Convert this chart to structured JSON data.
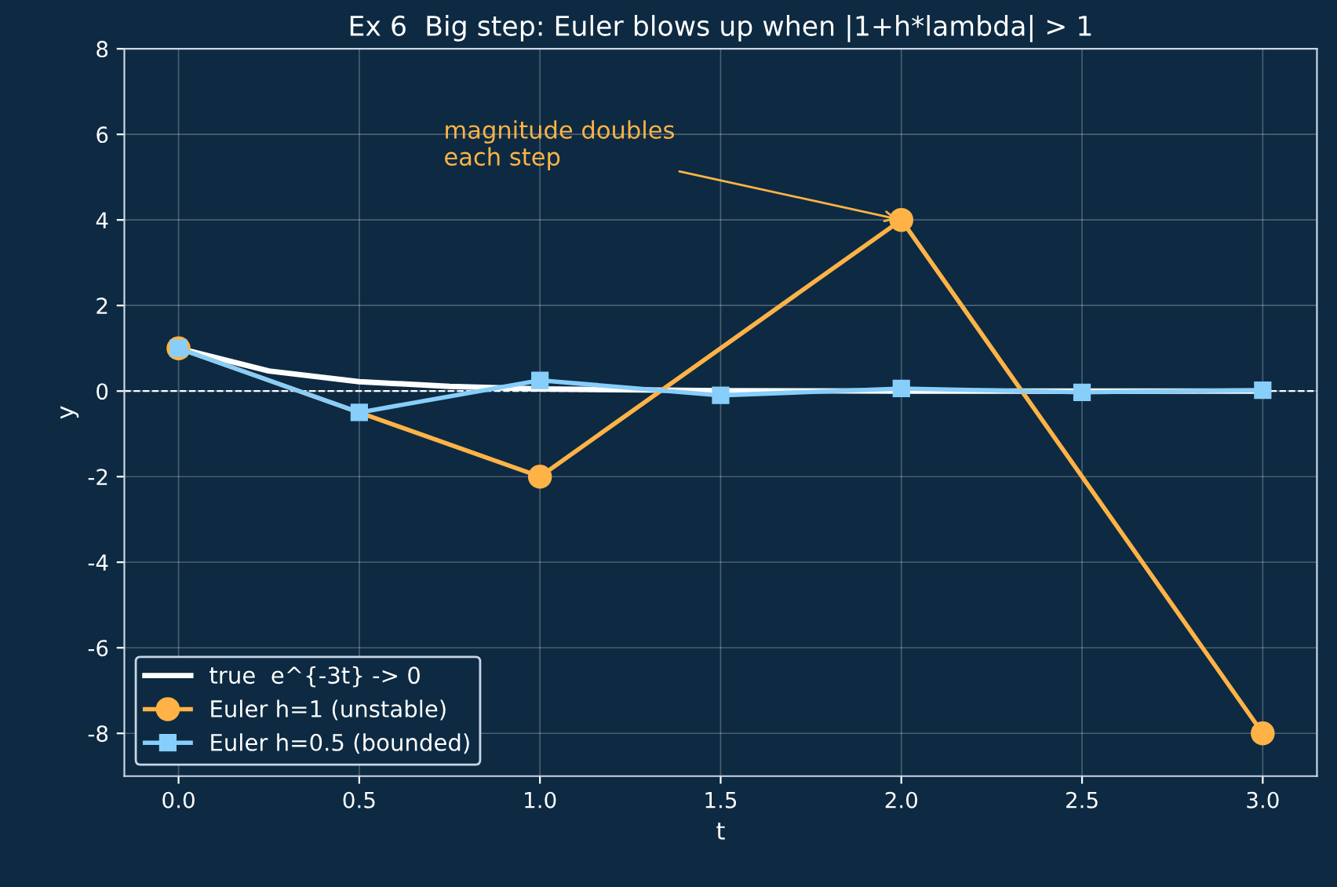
{
  "chart_data": {
    "type": "line",
    "title": "Ex 6  Big step: Euler blows up when |1+h*lambda| > 1",
    "xlabel": "t",
    "ylabel": "y",
    "series": [
      {
        "name": "true  e^{-3t} -> 0",
        "color": "#ffffff",
        "x": [
          0,
          0.25,
          0.5,
          0.75,
          1,
          1.5,
          2,
          2.5,
          3
        ],
        "values": [
          1,
          0.47,
          0.22,
          0.11,
          0.05,
          0.01,
          0,
          0,
          0
        ],
        "marker": "none"
      },
      {
        "name": "Euler h=1 (unstable)",
        "color": "#ffb347",
        "x": [
          0,
          1,
          2,
          3
        ],
        "values": [
          1,
          -2,
          4,
          -8
        ],
        "marker": "circle"
      },
      {
        "name": "Euler h=0.5 (bounded)",
        "color": "#87cefa",
        "x": [
          0,
          0.5,
          1,
          1.5,
          2,
          2.5,
          3
        ],
        "values": [
          1,
          -0.5,
          0.25,
          -0.1,
          0.06,
          -0.03,
          0.02
        ],
        "marker": "square"
      }
    ],
    "xlim": [
      -0.15,
      3.15
    ],
    "ylim": [
      -9,
      8
    ],
    "xticks": [
      {
        "value": 0,
        "label": "0.0"
      },
      {
        "value": 0.5,
        "label": "0.5"
      },
      {
        "value": 1,
        "label": "1.0"
      },
      {
        "value": 1.5,
        "label": "1.5"
      },
      {
        "value": 2,
        "label": "2.0"
      },
      {
        "value": 2.5,
        "label": "2.5"
      },
      {
        "value": 3,
        "label": "3.0"
      }
    ],
    "yticks": [
      -8,
      -6,
      -4,
      -2,
      0,
      2,
      4,
      6,
      8
    ],
    "ref_lines": [
      {
        "axis": "y",
        "value": 0,
        "color": "#ffffff",
        "line_style": "dashed"
      }
    ],
    "annotations": [
      {
        "text": "magnitude doubles\neach step",
        "x": 2,
        "y": 4
      }
    ],
    "grid": true,
    "legend": "bottom left",
    "line_style": "solid"
  }
}
